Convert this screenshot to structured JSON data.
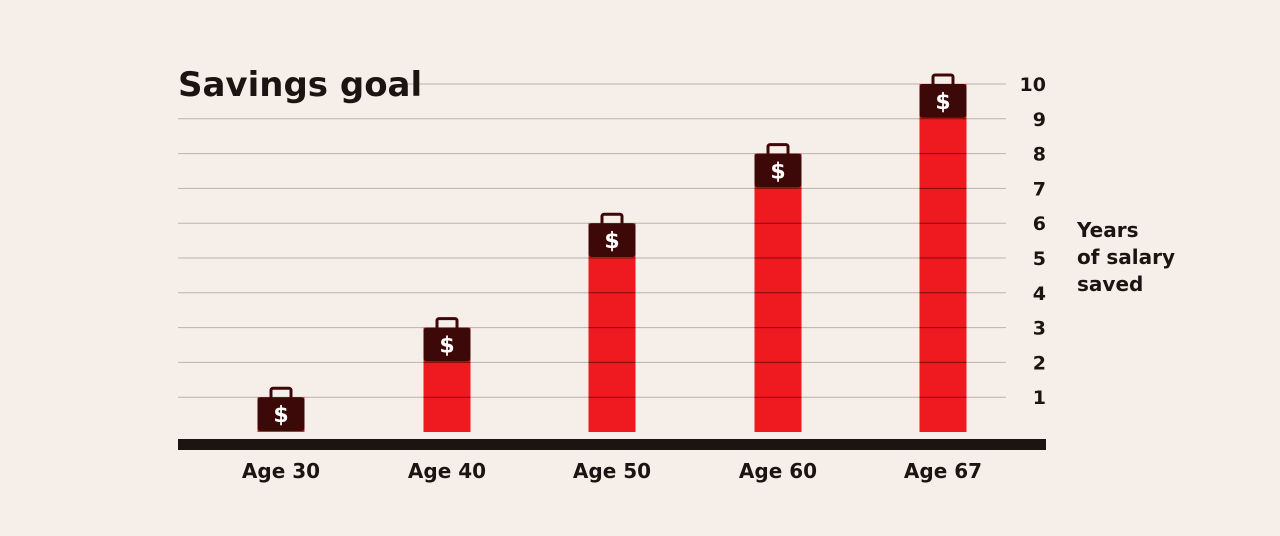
{
  "chart_data": {
    "type": "bar",
    "title": "Savings goal",
    "categories": [
      "Age 30",
      "Age 40",
      "Age 50",
      "Age 60",
      "Age 67"
    ],
    "values": [
      1,
      3,
      6,
      8,
      10
    ],
    "ylabel": [
      "Years",
      "of salary",
      "saved"
    ],
    "ylim": [
      0,
      10
    ],
    "yticks": [
      1,
      2,
      3,
      4,
      5,
      6,
      7,
      8,
      9,
      10
    ],
    "icon": "briefcase-dollar-icon",
    "icon_symbol": "$",
    "grid": true,
    "colors": {
      "bar": "#ee1a20",
      "briefcase": "#3d0808",
      "gridline": "#b9b2ad",
      "baseline": "#1c1412",
      "background": "#f6efe9"
    }
  }
}
